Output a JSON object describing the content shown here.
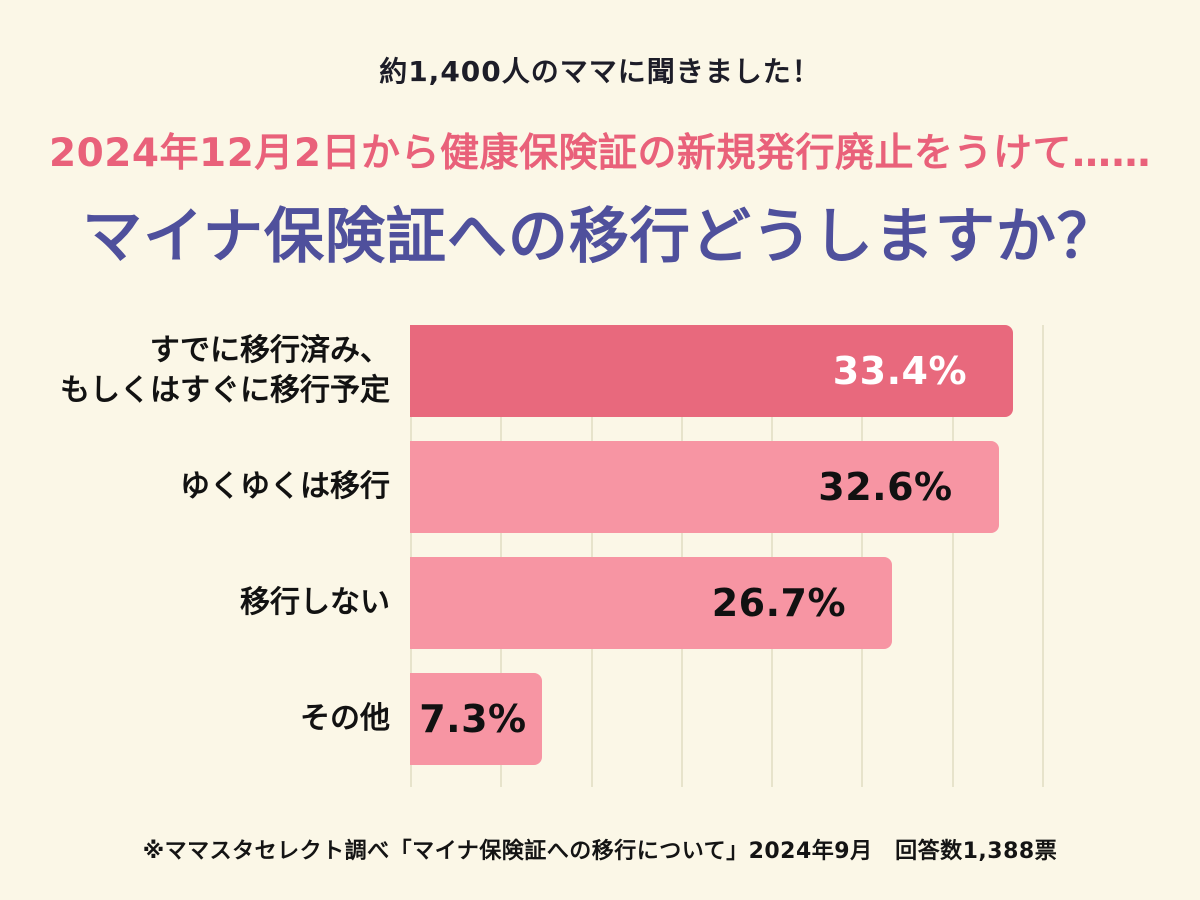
{
  "page": {
    "background": "#fbf7e7"
  },
  "header": {
    "subtitle": "約1,400人のママに聞きました！",
    "title_pink": "2024年12月2日から健康保険証の新規発行廃止をうけて……",
    "title_purple": "マイナ保険証への移行どうしますか？"
  },
  "chart_data": {
    "type": "bar",
    "orientation": "horizontal",
    "title": "マイナ保険証への移行どうしますか？",
    "categories": [
      "すでに移行済み、\nもしくはすぐに移行予定",
      "ゆくゆくは移行",
      "移行しない",
      "その他"
    ],
    "values": [
      33.4,
      32.6,
      26.7,
      7.3
    ],
    "value_labels": [
      "33.4%",
      "32.6%",
      "26.7%",
      "7.3%"
    ],
    "unit": "%",
    "xlim": [
      0,
      36
    ],
    "gridline_step": 5,
    "grid": true,
    "legend": "none",
    "bar_colors": [
      "#e8697d",
      "#f795a3",
      "#f795a3",
      "#f795a3"
    ],
    "value_label_colors": [
      "#ffffff",
      "#111111",
      "#111111",
      "#111111"
    ]
  },
  "footer": {
    "source_note": "※ママスタセレクト調べ「マイナ保険証への移行について」2024年9月　回答数1,388票"
  },
  "colors": {
    "background": "#fbf7e7",
    "accent_pink": "#e9617a",
    "accent_purple": "#4f509c",
    "bar_dark": "#e8697d",
    "bar_light": "#f795a3",
    "gridline": "#e7e3cb"
  }
}
